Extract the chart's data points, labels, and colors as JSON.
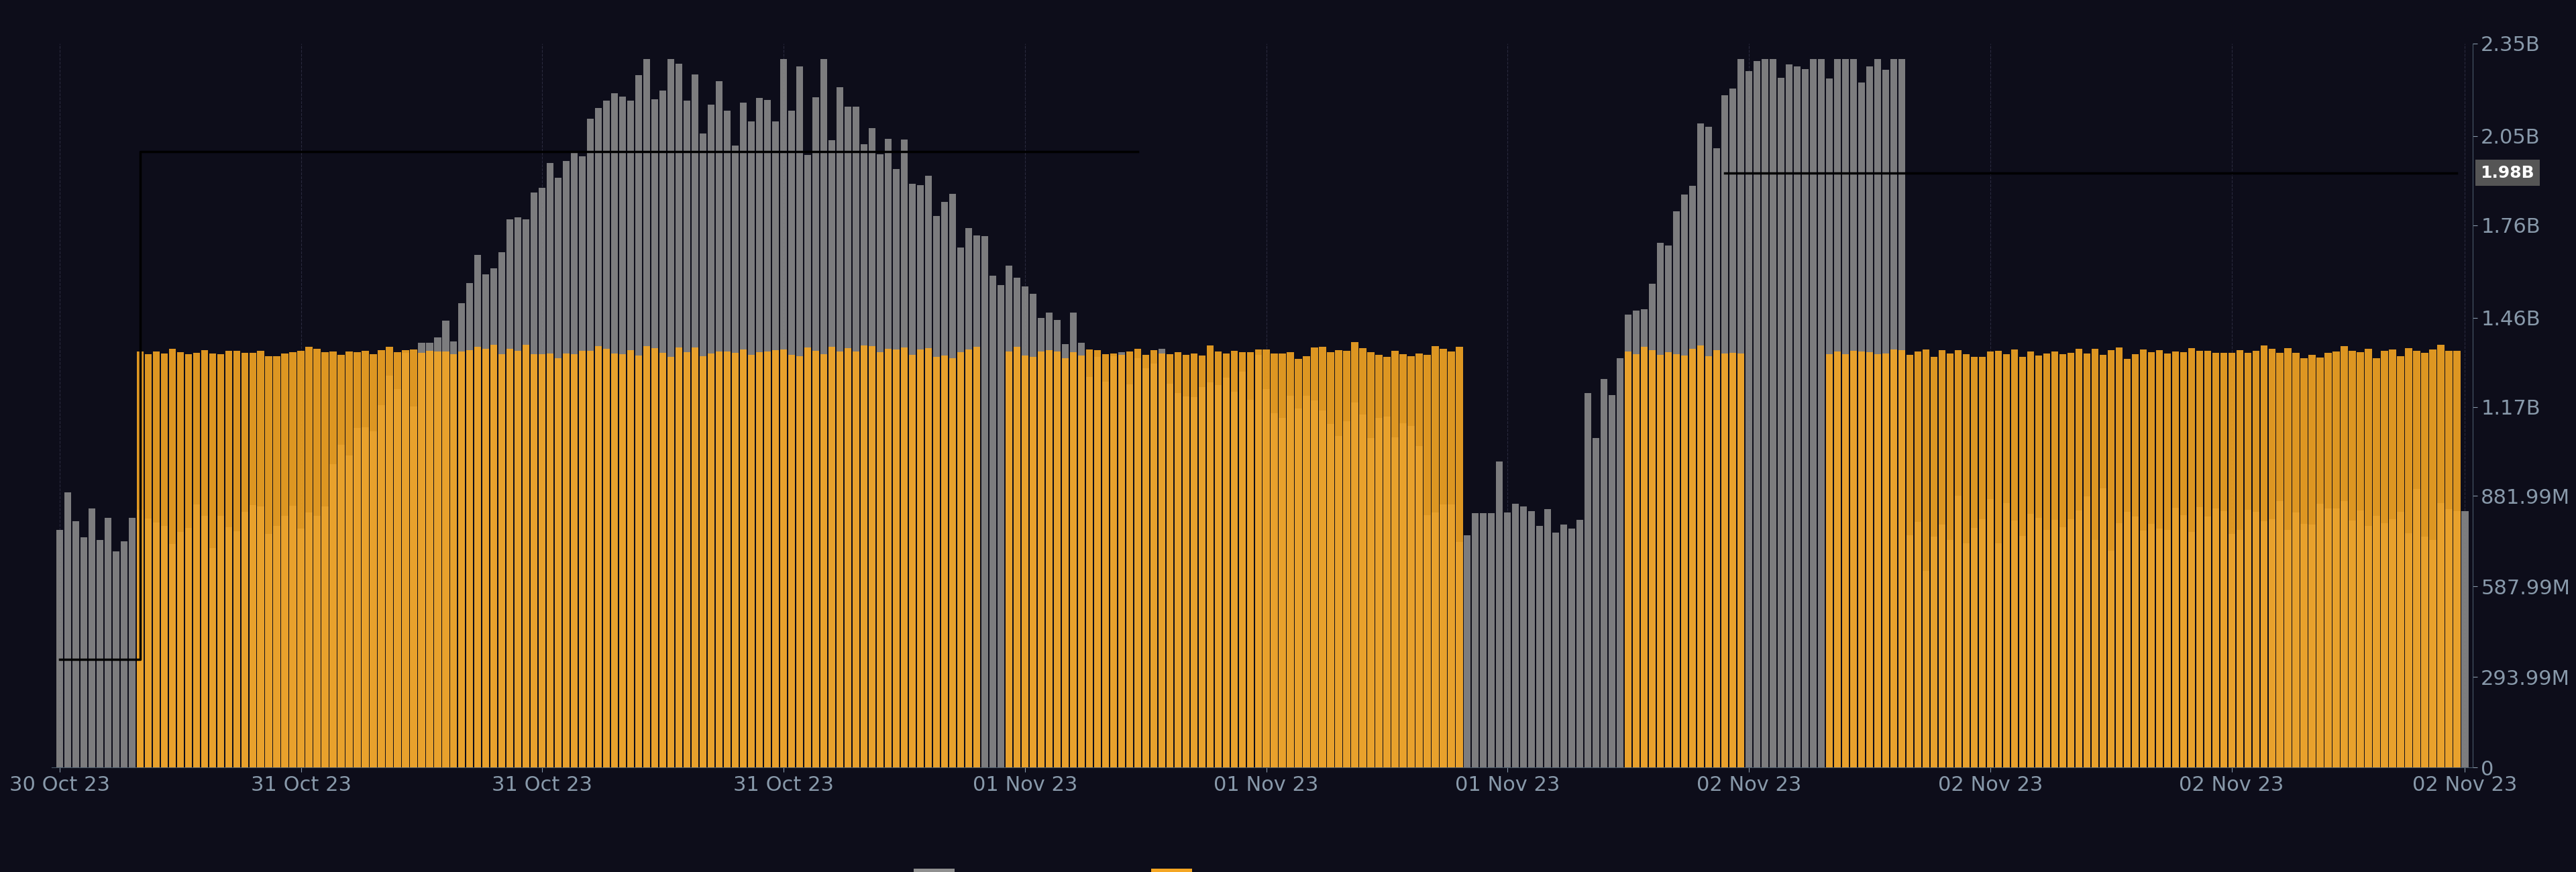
{
  "background_color": "#0d0d1a",
  "plot_bg_color": "#0d0d1a",
  "grid_color": "#2a2a3e",
  "bar_color_volume": "#909090",
  "bar_color_addresses": "#f5a623",
  "price_line_color": "#000000",
  "ma_line_color": "#ff4500",
  "right_axis_color": "#8899aa",
  "ytick_labels": [
    "0",
    "293.99M",
    "587.99M",
    "881.99M",
    "1.17B",
    "1.46B",
    "1.76B",
    "2.05B",
    "2.35B"
  ],
  "ytick_values": [
    0,
    293990000,
    587990000,
    881990000,
    1170000000,
    1460000000,
    1760000000,
    2050000000,
    2350000000
  ],
  "ymax": 2350000000,
  "price_label_value": "1.98B",
  "price_label_bg": "#555555",
  "price_label_color": "#ffffff",
  "n_bars": 300,
  "x_tick_labels": [
    "30 Oct 23",
    "31 Oct 23",
    "31 Oct 23",
    "31 Oct 23",
    "01 Nov 23",
    "01 Nov 23",
    "01 Nov 23",
    "02 Nov 23",
    "02 Nov 23",
    "02 Nov 23",
    "02 Nov 23"
  ],
  "x_tick_positions": [
    0,
    30,
    60,
    90,
    120,
    150,
    180,
    210,
    240,
    270,
    299
  ]
}
